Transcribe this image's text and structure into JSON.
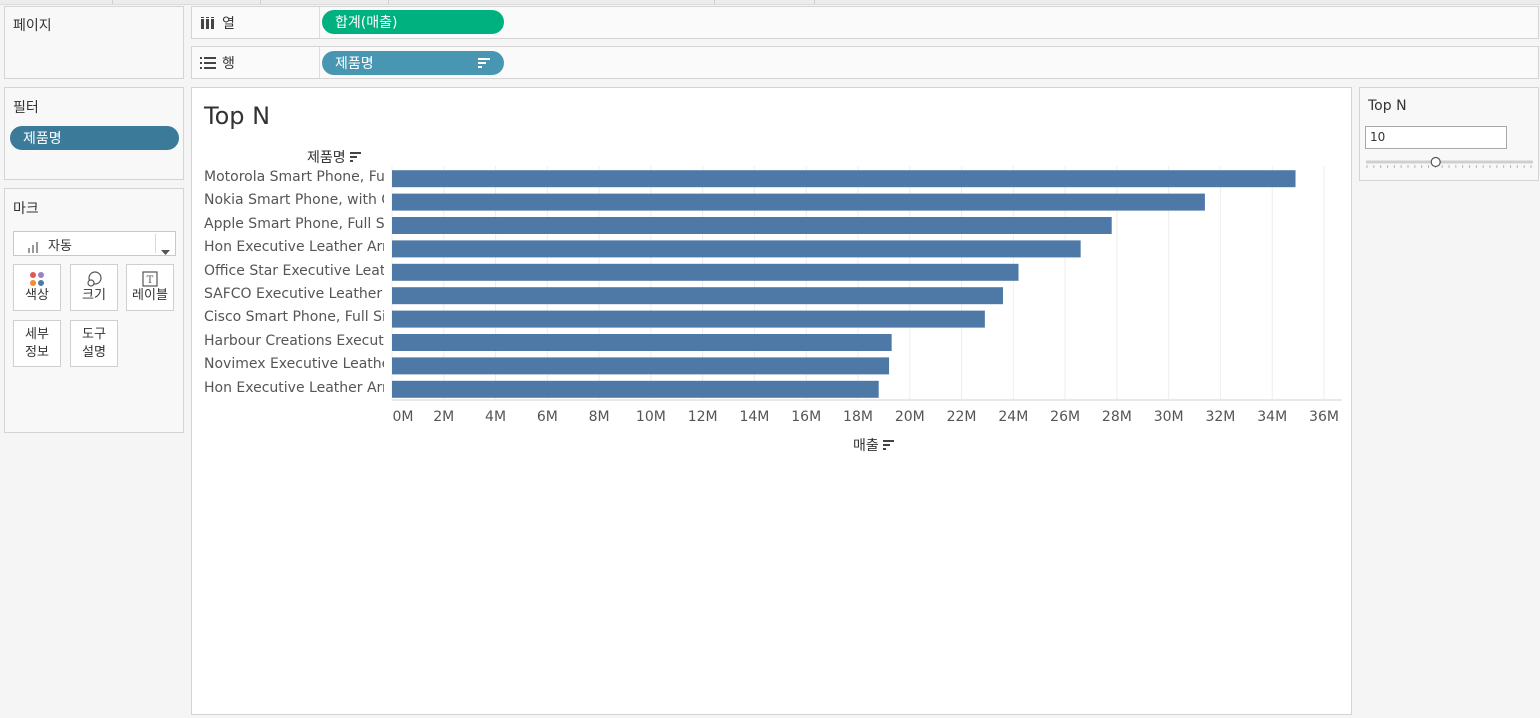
{
  "pages": {
    "title": "페이지"
  },
  "columns_shelf": {
    "label": "열",
    "pill": "합계(매출)"
  },
  "rows_shelf": {
    "label": "행",
    "pill": "제품명"
  },
  "filters": {
    "title": "필터",
    "pill": "제품명"
  },
  "marks": {
    "title": "마크",
    "type_value": "자동",
    "buttons": {
      "color": "색상",
      "size": "크기",
      "label": "레이블",
      "detail_1": "세부",
      "detail_2": "정보",
      "tooltip_1": "도구",
      "tooltip_2": "설명"
    }
  },
  "viz": {
    "title": "Top N",
    "row_header": "제품명",
    "axis_title": "매출"
  },
  "parameter": {
    "title": "Top N",
    "value": "10",
    "slider_fraction": 0.13
  },
  "colors": {
    "bar": "#4e79a7",
    "green_pill": "#00b180",
    "blue_pill": "#4996b2",
    "filter_pill": "#3b7a99"
  },
  "chart_data": {
    "type": "bar",
    "orientation": "horizontal",
    "title": "Top N",
    "xlabel": "매출",
    "ylabel": "제품명",
    "categories": [
      "Motorola Smart Phone, Full..",
      "Nokia Smart Phone, with C..",
      "Apple Smart Phone, Full Si..",
      "Hon Executive Leather Arm..",
      "Office Star Executive Leath..",
      "SAFCO Executive Leather A..",
      "Cisco Smart Phone, Full Size",
      "Harbour Creations Executiv..",
      "Novimex Executive Leather..",
      "Hon Executive Leather Arm.."
    ],
    "values": [
      34900000,
      31400000,
      27800000,
      26600000,
      24200000,
      23600000,
      22900000,
      19300000,
      19200000,
      18800000
    ],
    "xlim": [
      0,
      36000000
    ],
    "xticks": [
      "0M",
      "2M",
      "4M",
      "6M",
      "8M",
      "10M",
      "12M",
      "14M",
      "16M",
      "18M",
      "20M",
      "22M",
      "24M",
      "26M",
      "28M",
      "30M",
      "32M",
      "34M",
      "36M"
    ],
    "grid": true
  }
}
